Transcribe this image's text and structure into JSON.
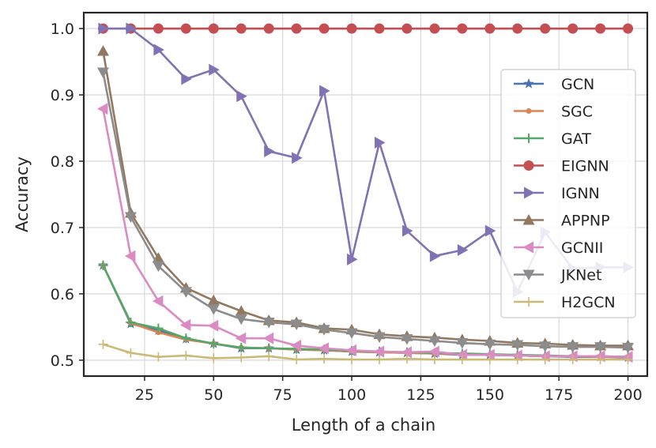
{
  "chart_data": {
    "type": "line",
    "title": "",
    "xlabel": "Length of a chain",
    "ylabel": "Accuracy",
    "xlim": [
      3,
      207
    ],
    "ylim": [
      0.476,
      1.024
    ],
    "xticks": [
      25,
      50,
      75,
      100,
      125,
      150,
      175,
      200
    ],
    "xtick_labels": [
      "25",
      "50",
      "75",
      "100",
      "125",
      "150",
      "175",
      "200"
    ],
    "yticks": [
      0.5,
      0.6,
      0.7,
      0.8,
      0.9,
      1.0
    ],
    "ytick_labels": [
      "0.5",
      "0.6",
      "0.7",
      "0.8",
      "0.9",
      "1.0"
    ],
    "grid": true,
    "legend_position": "right",
    "x": [
      10,
      20,
      30,
      40,
      50,
      60,
      70,
      80,
      90,
      100,
      110,
      120,
      130,
      140,
      150,
      160,
      170,
      180,
      190,
      200
    ],
    "series": [
      {
        "name": "GCN",
        "color": "#4c72b0",
        "marker": "star",
        "values": [
          0.643,
          0.555,
          0.545,
          0.532,
          0.525,
          0.518,
          0.518,
          0.516,
          0.515,
          0.513,
          0.512,
          0.511,
          0.51,
          0.508,
          0.508,
          0.507,
          0.506,
          0.505,
          0.505,
          0.504
        ]
      },
      {
        "name": "SGC",
        "color": "#dd8452",
        "marker": "dot",
        "values": [
          0.643,
          0.556,
          0.542,
          0.531,
          0.525,
          0.519,
          0.518,
          0.516,
          0.515,
          0.513,
          0.512,
          0.511,
          0.51,
          0.509,
          0.508,
          0.507,
          0.506,
          0.506,
          0.505,
          0.505
        ]
      },
      {
        "name": "GAT",
        "color": "#55a868",
        "marker": "plus",
        "values": [
          0.643,
          0.557,
          0.548,
          0.533,
          0.525,
          0.519,
          0.518,
          0.517,
          0.516,
          0.514,
          0.513,
          0.512,
          0.511,
          0.51,
          0.509,
          0.508,
          0.507,
          0.506,
          0.506,
          0.505
        ]
      },
      {
        "name": "EIGNN",
        "color": "#c44e52",
        "marker": "circle",
        "values": [
          1.0,
          1.0,
          1.0,
          1.0,
          1.0,
          1.0,
          1.0,
          1.0,
          1.0,
          1.0,
          1.0,
          1.0,
          1.0,
          1.0,
          1.0,
          1.0,
          1.0,
          1.0,
          1.0,
          1.0
        ]
      },
      {
        "name": "IGNN",
        "color": "#8172b3",
        "marker": "triangle-right",
        "values": [
          1.0,
          1.0,
          0.968,
          0.924,
          0.938,
          0.898,
          0.815,
          0.805,
          0.906,
          0.652,
          0.828,
          0.695,
          0.657,
          0.666,
          0.695,
          0.603,
          0.693,
          0.638,
          0.64,
          0.64
        ]
      },
      {
        "name": "APPNP",
        "color": "#937860",
        "marker": "triangle-up",
        "values": [
          0.966,
          0.722,
          0.654,
          0.609,
          0.59,
          0.574,
          0.56,
          0.557,
          0.548,
          0.546,
          0.539,
          0.536,
          0.534,
          0.531,
          0.529,
          0.526,
          0.525,
          0.523,
          0.522,
          0.522
        ]
      },
      {
        "name": "GCNII",
        "color": "#da8bc3",
        "marker": "triangle-left",
        "values": [
          0.879,
          0.657,
          0.589,
          0.553,
          0.552,
          0.533,
          0.533,
          0.522,
          0.518,
          0.515,
          0.513,
          0.512,
          0.513,
          0.508,
          0.508,
          0.507,
          0.506,
          0.506,
          0.506,
          0.505
        ]
      },
      {
        "name": "JKNet",
        "color": "#8c8c8c",
        "marker": "triangle-down",
        "values": [
          0.934,
          0.716,
          0.642,
          0.603,
          0.577,
          0.562,
          0.557,
          0.554,
          0.546,
          0.541,
          0.535,
          0.532,
          0.529,
          0.526,
          0.524,
          0.523,
          0.521,
          0.52,
          0.52,
          0.519
        ]
      },
      {
        "name": "H2GCN",
        "color": "#ccb974",
        "marker": "thin-plus",
        "values": [
          0.524,
          0.511,
          0.505,
          0.507,
          0.503,
          0.504,
          0.506,
          0.501,
          0.502,
          0.501,
          0.501,
          0.502,
          0.501,
          0.501,
          0.501,
          0.501,
          0.501,
          0.501,
          0.501,
          0.501
        ]
      }
    ]
  }
}
